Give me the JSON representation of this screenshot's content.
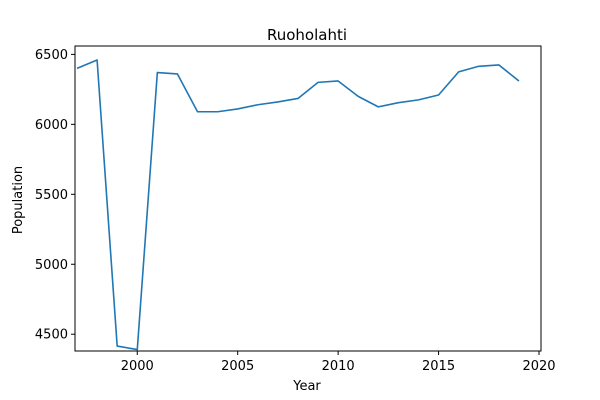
{
  "chart_data": {
    "type": "line",
    "title": "Ruoholahti",
    "xlabel": "Year",
    "ylabel": "Population",
    "xlim": [
      1996.9,
      2020.1
    ],
    "ylim": [
      4380,
      6560
    ],
    "xticks": [
      2000,
      2005,
      2010,
      2015,
      2020
    ],
    "yticks": [
      4500,
      5000,
      5500,
      6000,
      6500
    ],
    "grid": false,
    "series": [
      {
        "color": "#1f77b4",
        "x": [
          1997,
          1998,
          1999,
          2000,
          2001,
          2002,
          2003,
          2004,
          2005,
          2006,
          2007,
          2008,
          2009,
          2010,
          2011,
          2012,
          2013,
          2014,
          2015,
          2016,
          2017,
          2018,
          2019
        ],
        "y": [
          6400,
          6460,
          4415,
          4390,
          6370,
          6360,
          6090,
          6090,
          6110,
          6140,
          6160,
          6185,
          6300,
          6310,
          6200,
          6125,
          6155,
          6175,
          6210,
          6375,
          6415,
          6425,
          6310
        ]
      }
    ]
  }
}
